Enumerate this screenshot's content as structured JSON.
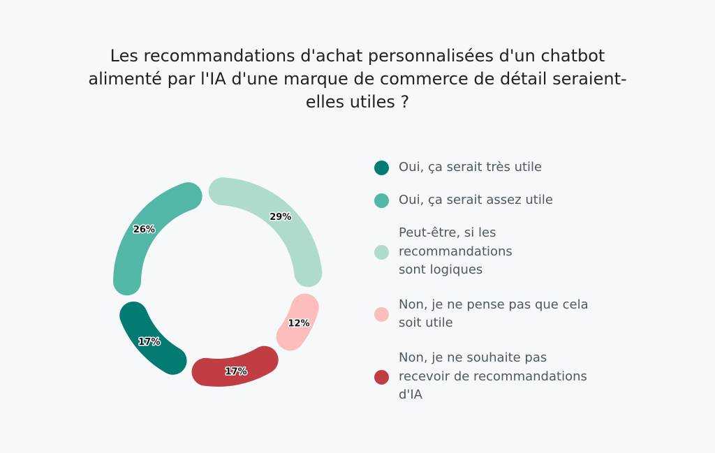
{
  "chart_data": {
    "type": "pie",
    "variant": "donut",
    "title_lines": [
      "Les recommandations d'achat personnalisées d'un chatbot",
      "alimenté par l'IA d'une marque de commerce de détail seraient-",
      "elles utiles ?"
    ],
    "slices": [
      {
        "name": "Peut-être, si les recommandations sont logiques",
        "legend_lines": [
          "Peut-être, si les",
          "recommandations",
          "sont logiques"
        ],
        "value": 29,
        "label": "29%",
        "color": "#AEDBCC"
      },
      {
        "name": "Non, je ne pense pas que cela soit utile",
        "legend_lines": [
          "Non, je ne pense pas que cela",
          "soit utile"
        ],
        "value": 12,
        "label": "12%",
        "color": "#FDBDBD"
      },
      {
        "name": "Non, je ne souhaite pas recevoir de recommandations d'IA",
        "legend_lines": [
          "Non, je ne souhaite pas",
          "recevoir de recommandations",
          "d'IA"
        ],
        "value": 17,
        "label": "17%",
        "color": "#C03D44"
      },
      {
        "name": "Oui, ça serait très utile",
        "legend_lines": [
          "Oui, ça serait très utile"
        ],
        "value": 17,
        "label": "17%",
        "color": "#037B72"
      },
      {
        "name": "Oui, ça serait assez utile",
        "legend_lines": [
          "Oui, ça serait assez utile"
        ],
        "value": 26,
        "label": "26%",
        "color": "#52B8A5"
      }
    ],
    "legend_order": [
      3,
      4,
      0,
      1,
      2
    ],
    "legend_placement": "right"
  }
}
